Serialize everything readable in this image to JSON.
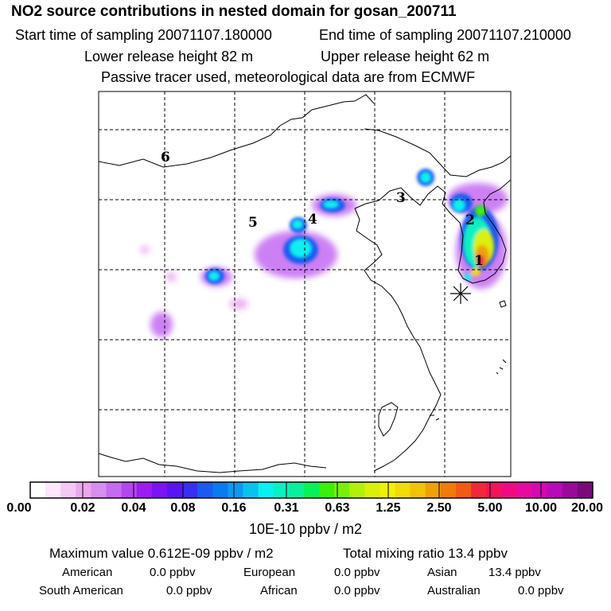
{
  "header": {
    "title": "NO2 source contributions in nested domain for gosan_200711",
    "start_label": "Start time of sampling 20071107.180000",
    "end_label": "End time of sampling 20071107.210000",
    "lower_release": "Lower release height   82 m",
    "upper_release": "Upper release height   62 m",
    "tracer_note": "Passive tracer used, meteorological data are from ECMWF"
  },
  "map": {
    "region_labels": [
      "1",
      "2",
      "3",
      "4",
      "5",
      "6"
    ],
    "receptor_marker": "star-icon"
  },
  "colorbar": {
    "colors": [
      "#ffffff",
      "#fbe6fb",
      "#f3c8f3",
      "#eaa7ee",
      "#d68ef0",
      "#c46bf2",
      "#b246f0",
      "#9a1ef0",
      "#7a14f0",
      "#5a14f0",
      "#3a2ef0",
      "#1a5af0",
      "#0a7af0",
      "#0a9af0",
      "#0ac2f0",
      "#0af0f0",
      "#0af0c2",
      "#0af09a",
      "#0af05a",
      "#3af00a",
      "#7af00a",
      "#b2f00a",
      "#daf00a",
      "#f0f00a",
      "#f0da0a",
      "#f0c20a",
      "#f0a00a",
      "#f07a0a",
      "#f05a14",
      "#f0283c",
      "#f0145a",
      "#f00a82",
      "#e60aa0",
      "#d20ab2",
      "#b80ab8",
      "#9a0a9a",
      "#7a0a7a"
    ],
    "ticks": [
      "0.00",
      "0.02",
      "0.04",
      "0.08",
      "0.16",
      "0.31",
      "0.63",
      "1.25",
      "2.50",
      "5.00",
      "10.00",
      "20.00"
    ],
    "unit": "10E-10 ppbv / m2"
  },
  "summary": {
    "max_value": "Maximum value  0.612E-09 ppbv / m2",
    "total": "Total mixing ratio       13.4 ppbv",
    "american_label": "American",
    "american_value": "0.0 ppbv",
    "european_label": "European",
    "european_value": "0.0 ppbv",
    "asian_label": "Asian",
    "asian_value": "13.4 ppbv",
    "south_american_label": "South American",
    "south_american_value": "0.0 ppbv",
    "african_label": "African",
    "african_value": "0.0 ppbv",
    "australian_label": "Australian",
    "australian_value": "0.0 ppbv"
  }
}
